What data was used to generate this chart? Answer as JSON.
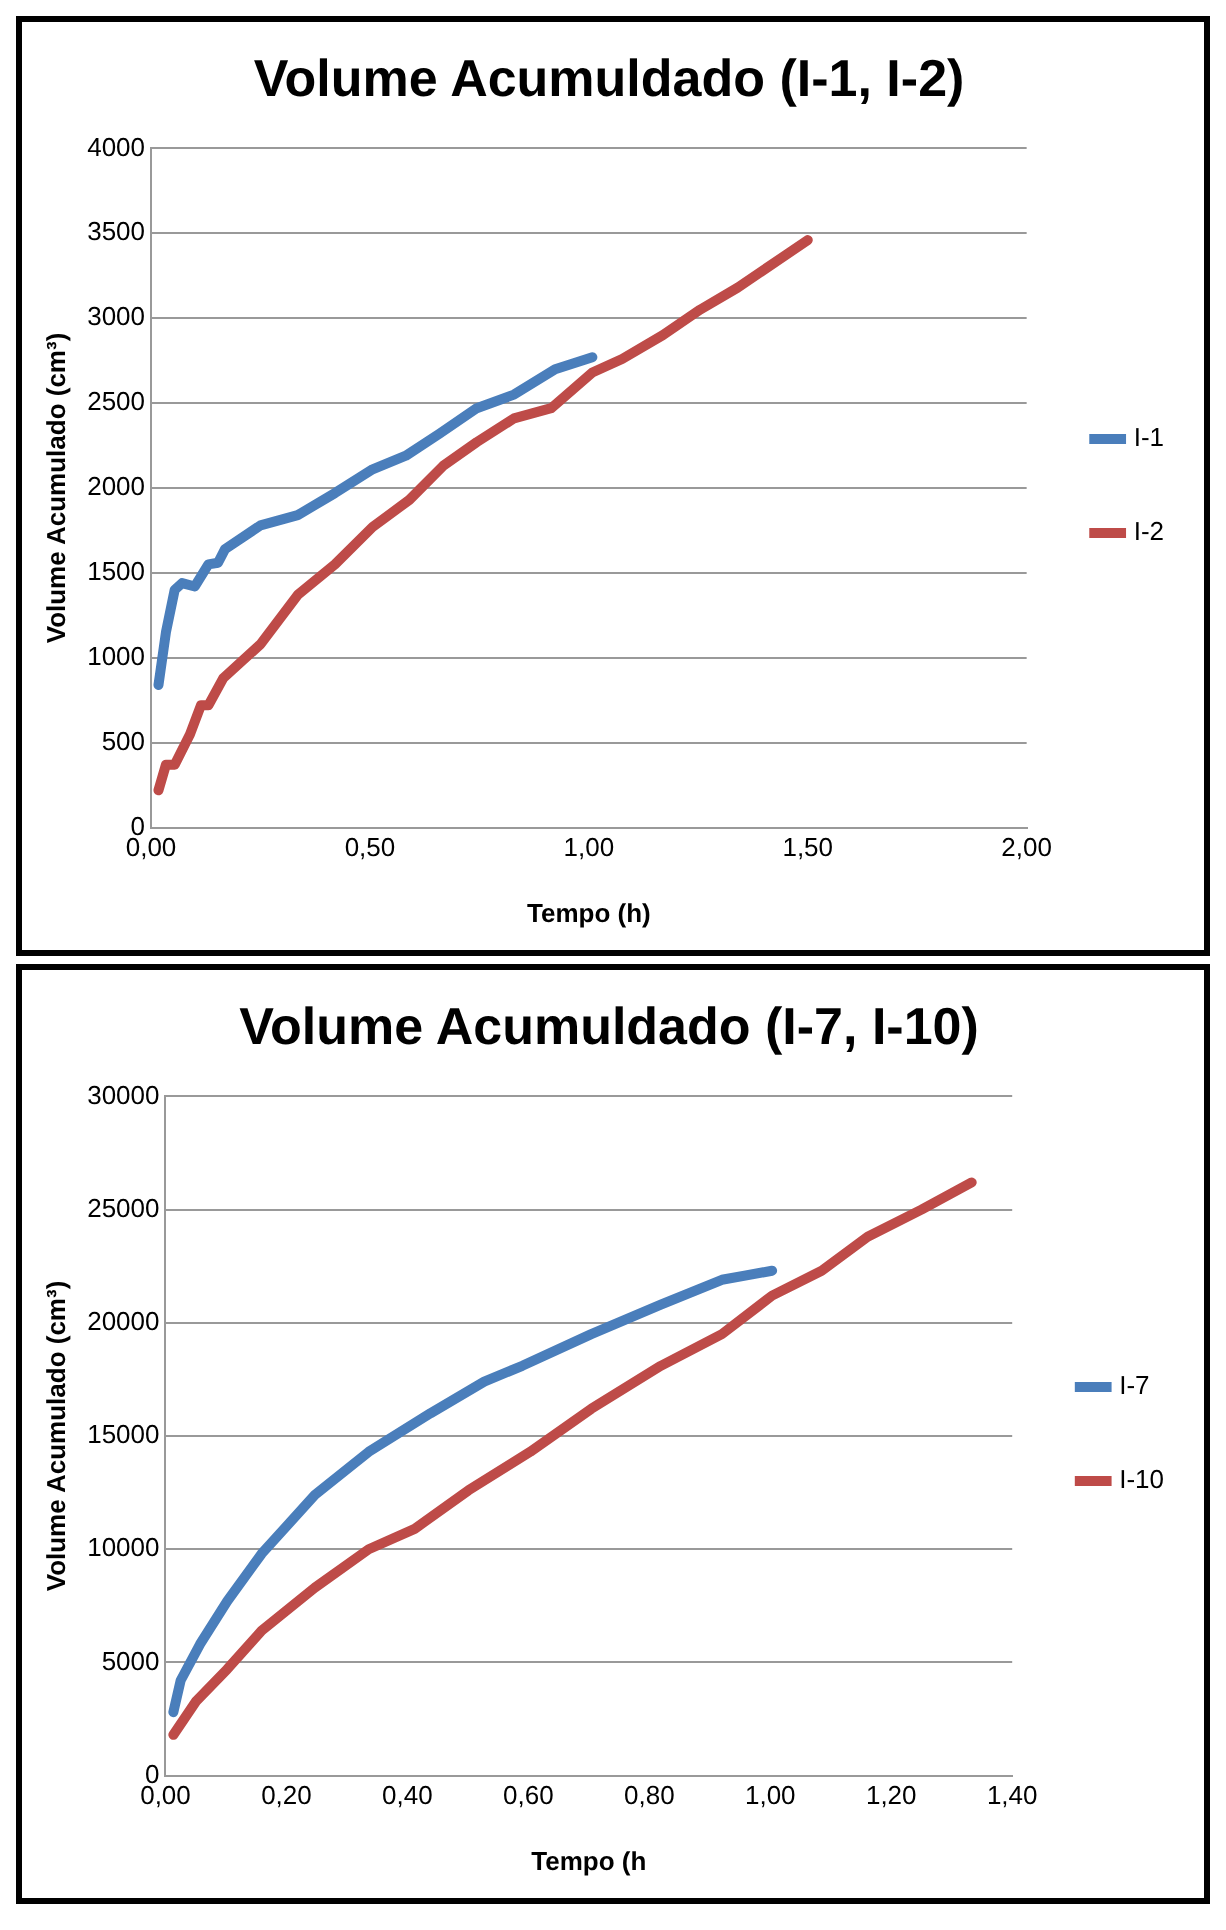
{
  "chart_data": [
    {
      "type": "line",
      "title": "Volume Acumuldado (I-1, I-2)",
      "xlabel": "Tempo (h)",
      "ylabel": "Volume Acumulado (cm³)",
      "xlim": [
        0,
        2
      ],
      "xticks": [
        {
          "value": 0,
          "label": "0,00"
        },
        {
          "value": 0.5,
          "label": "0,50"
        },
        {
          "value": 1,
          "label": "1,00"
        },
        {
          "value": 1.5,
          "label": "1,50"
        },
        {
          "value": 2,
          "label": "2,00"
        }
      ],
      "ylim": [
        0,
        4000
      ],
      "yticks": [
        0,
        500,
        1000,
        1500,
        2000,
        2500,
        3000,
        3500,
        4000
      ],
      "grid": "y",
      "legend": "right",
      "marker": "none",
      "line_style": "solid",
      "series": [
        {
          "name": "I-1",
          "color": "#4a7ebb",
          "x": [
            0.017,
            0.034,
            0.054,
            0.071,
            0.1,
            0.131,
            0.153,
            0.169,
            0.25,
            0.335,
            0.42,
            0.506,
            0.582,
            0.659,
            0.744,
            0.829,
            0.923,
            1.008
          ],
          "values": [
            840,
            1150,
            1400,
            1440,
            1420,
            1550,
            1560,
            1640,
            1780,
            1840,
            1970,
            2110,
            2190,
            2320,
            2470,
            2550,
            2700,
            2770
          ]
        },
        {
          "name": "I-2",
          "color": "#be4b48",
          "x": [
            0.017,
            0.034,
            0.054,
            0.089,
            0.114,
            0.131,
            0.165,
            0.25,
            0.335,
            0.42,
            0.506,
            0.59,
            0.667,
            0.744,
            0.829,
            0.914,
            1.008,
            1.076,
            1.169,
            1.254,
            1.34,
            1.5
          ],
          "values": [
            220,
            370,
            370,
            550,
            720,
            720,
            880,
            1080,
            1370,
            1550,
            1770,
            1930,
            2130,
            2270,
            2410,
            2470,
            2680,
            2760,
            2900,
            3050,
            3180,
            3460
          ]
        }
      ]
    },
    {
      "type": "line",
      "title": "Volume Acumuldado (I-7, I-10)",
      "xlabel": "Tempo (h",
      "ylabel": "Volume Acumulado (cm³)",
      "xlim": [
        0,
        1.4
      ],
      "xticks": [
        {
          "value": 0,
          "label": "0,00"
        },
        {
          "value": 0.2,
          "label": "0,20"
        },
        {
          "value": 0.4,
          "label": "0,40"
        },
        {
          "value": 0.6,
          "label": "0,60"
        },
        {
          "value": 0.8,
          "label": "0,80"
        },
        {
          "value": 1,
          "label": "1,00"
        },
        {
          "value": 1.2,
          "label": "1,20"
        },
        {
          "value": 1.4,
          "label": "1,40"
        }
      ],
      "ylim": [
        0,
        30000
      ],
      "yticks": [
        0,
        5000,
        10000,
        15000,
        20000,
        25000,
        30000
      ],
      "grid": "y",
      "legend": "right",
      "marker": "none",
      "line_style": "solid",
      "series": [
        {
          "name": "I-7",
          "color": "#4a7ebb",
          "x": [
            0.013,
            0.025,
            0.057,
            0.102,
            0.159,
            0.247,
            0.336,
            0.438,
            0.527,
            0.59,
            0.704,
            0.819,
            0.92,
            1.003
          ],
          "values": [
            2800,
            4200,
            5800,
            7700,
            9800,
            12400,
            14300,
            16000,
            17400,
            18100,
            19500,
            20800,
            21900,
            22300
          ]
        },
        {
          "name": "I-10",
          "color": "#be4b48",
          "x": [
            0.013,
            0.051,
            0.102,
            0.159,
            0.247,
            0.336,
            0.412,
            0.501,
            0.603,
            0.704,
            0.819,
            0.92,
            1.003,
            1.085,
            1.161,
            1.25,
            1.333
          ],
          "values": [
            1800,
            3300,
            4700,
            6400,
            8300,
            10000,
            10900,
            12600,
            14300,
            16200,
            18100,
            19500,
            21200,
            22300,
            23800,
            25000,
            26200
          ]
        }
      ]
    }
  ]
}
